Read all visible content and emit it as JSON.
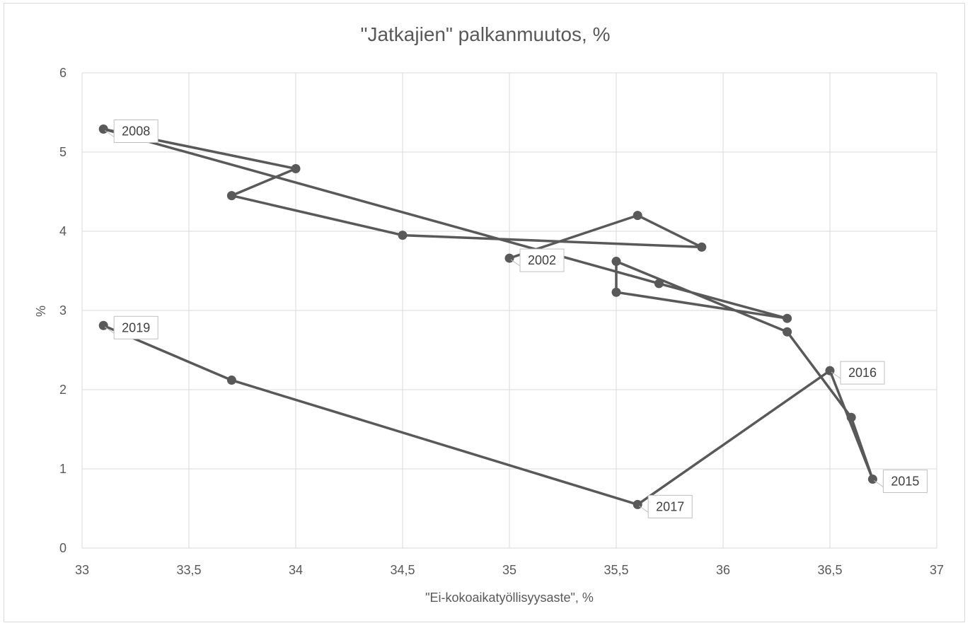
{
  "chart_data": {
    "type": "scatter",
    "title": "\"Jatkajien\" palkanmuutos, %",
    "xlabel": "\"Ei-kokoaikatyöllisyysaste\", %",
    "ylabel": "%",
    "xlim": [
      33,
      37
    ],
    "ylim": [
      0,
      6
    ],
    "x_ticks": [
      33,
      33.5,
      34,
      34.5,
      35,
      35.5,
      36,
      36.5,
      37
    ],
    "x_tick_labels": [
      "33",
      "33,5",
      "34",
      "34,5",
      "35",
      "35,5",
      "36",
      "36,5",
      "37"
    ],
    "y_ticks": [
      0,
      1,
      2,
      3,
      4,
      5,
      6
    ],
    "y_tick_labels": [
      "0",
      "1",
      "2",
      "3",
      "4",
      "5",
      "6"
    ],
    "grid": true,
    "lines_connect_points": true,
    "series_color": "#595959",
    "points": [
      {
        "x": 35.0,
        "y": 3.66,
        "label": "2002"
      },
      {
        "x": 35.6,
        "y": 4.2
      },
      {
        "x": 35.9,
        "y": 3.8
      },
      {
        "x": 34.5,
        "y": 3.95
      },
      {
        "x": 33.7,
        "y": 4.45
      },
      {
        "x": 34.0,
        "y": 4.79
      },
      {
        "x": 33.1,
        "y": 5.29,
        "label": "2008"
      },
      {
        "x": 35.7,
        "y": 3.34
      },
      {
        "x": 36.3,
        "y": 2.9
      },
      {
        "x": 35.5,
        "y": 3.23
      },
      {
        "x": 35.5,
        "y": 3.62
      },
      {
        "x": 36.3,
        "y": 2.73
      },
      {
        "x": 36.6,
        "y": 1.65
      },
      {
        "x": 36.7,
        "y": 0.87,
        "label": "2015"
      },
      {
        "x": 36.5,
        "y": 2.24,
        "label": "2016"
      },
      {
        "x": 35.6,
        "y": 0.55,
        "label": "2017"
      },
      {
        "x": 33.7,
        "y": 2.12
      },
      {
        "x": 33.1,
        "y": 2.81,
        "label": "2019"
      }
    ]
  }
}
